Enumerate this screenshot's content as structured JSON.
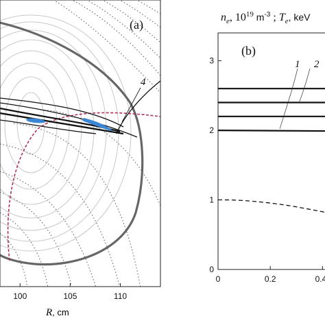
{
  "chart_data": [
    {
      "panel": "a",
      "type": "diagram",
      "panel_label": "(a)",
      "xlabel": "R, cm",
      "x_ticks": [
        100,
        105,
        110
      ],
      "xlim": [
        98,
        114
      ],
      "annotations": [
        "4"
      ],
      "colors": {
        "boundary": "#666666",
        "flux": "#c8c8c8",
        "field": "#555555",
        "ray": "#111111",
        "resonance": "#b03060",
        "absorption": "#3a86d4"
      }
    },
    {
      "panel": "b",
      "type": "line",
      "panel_label": "(b)",
      "title": "n_e, 10^19 m^-3 ; T_e, keV",
      "title_parts": {
        "n": "n",
        "e1": "e",
        "sep1": ", 10",
        "exp": "19",
        "unit": " m",
        "unitexp": "-3",
        "sep2": " ; ",
        "T": "T",
        "e2": "e",
        "tail": ", keV"
      },
      "xlim": [
        0,
        0.42
      ],
      "ylim": [
        0,
        3.4
      ],
      "x_ticks": [
        0,
        0.2,
        0.4
      ],
      "x_tick_labels": [
        "0",
        "0.2",
        "0.4"
      ],
      "y_ticks": [
        0,
        1,
        2,
        3
      ],
      "curve_labels": [
        "1",
        "2"
      ],
      "series": [
        {
          "values": [
            [
              0,
              2.6
            ],
            [
              0.42,
              2.6
            ]
          ],
          "style": "solid-thick"
        },
        {
          "values": [
            [
              0,
              2.4
            ],
            [
              0.42,
              2.4
            ]
          ],
          "style": "solid-thick"
        },
        {
          "values": [
            [
              0,
              2.2
            ],
            [
              0.42,
              2.2
            ]
          ],
          "style": "solid-thick"
        },
        {
          "values": [
            [
              0,
              2.0
            ],
            [
              0.42,
              1.99
            ]
          ],
          "style": "solid-thick"
        },
        {
          "values": [
            [
              0,
              1.0
            ],
            [
              0.05,
              0.999
            ],
            [
              0.1,
              0.99
            ],
            [
              0.15,
              0.975
            ],
            [
              0.2,
              0.955
            ],
            [
              0.25,
              0.93
            ],
            [
              0.3,
              0.9
            ],
            [
              0.35,
              0.865
            ],
            [
              0.4,
              0.83
            ],
            [
              0.42,
              0.81
            ]
          ],
          "style": "dashed"
        }
      ]
    }
  ]
}
